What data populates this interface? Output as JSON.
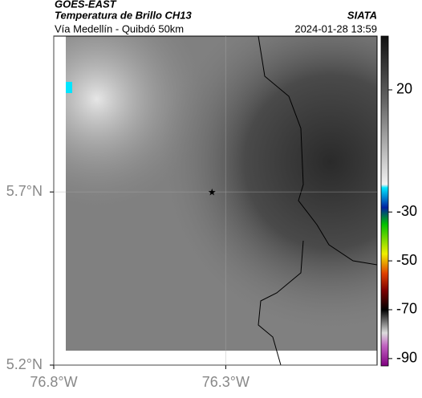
{
  "header": {
    "agency": "GOES-EAST",
    "title": "Temperatura de Brillo CH13",
    "subtitle": "Vía Medellín - Quibdó 50km",
    "source": "SIATA",
    "timestamp": "2024-01-28 13:59"
  },
  "map": {
    "xlim": [
      -76.8,
      -75.86
    ],
    "ylim": [
      5.2,
      6.15
    ],
    "xticks": [
      {
        "value": -76.8,
        "label": "76.8°W"
      },
      {
        "value": -76.3,
        "label": "76.3°W"
      }
    ],
    "yticks": [
      {
        "value": 5.7,
        "label": "5.7°N"
      },
      {
        "value": 5.2,
        "label": "5.2°N"
      }
    ],
    "marker": {
      "lon": -76.34,
      "lat": 5.7
    }
  },
  "colorbar": {
    "lim": [
      -93,
      42
    ],
    "ticks": [
      20,
      -30,
      -50,
      -70,
      -90
    ]
  }
}
